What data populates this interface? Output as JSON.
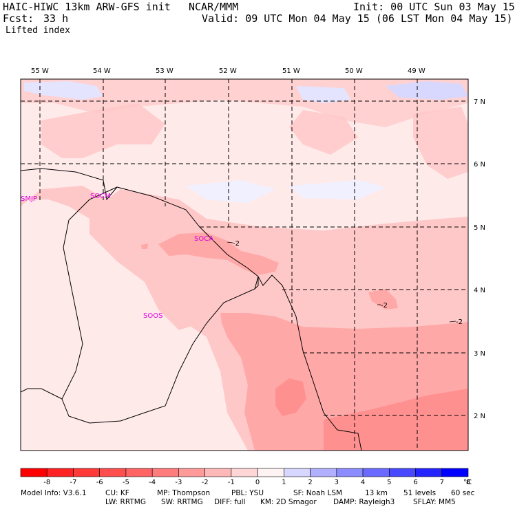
{
  "header": {
    "model": "HAIC-HIWC 13km ARW-GFS init",
    "org": "NCAR/MMM",
    "init": "Init: 00 UTC Sun 03 May 15",
    "fcst_label": "Fcst:",
    "fcst_value": "33 h",
    "valid": "Valid: 09 UTC Mon 04 May 15 (06 LST Mon 04 May 15)",
    "field": "Lifted index"
  },
  "map": {
    "lon_labels": [
      "55 W",
      "54 W",
      "53 W",
      "52 W",
      "51 W",
      "50 W",
      "49 W"
    ],
    "lat_labels": [
      "7 N",
      "6 N",
      "5 N",
      "4 N",
      "3 N",
      "2 N"
    ],
    "stations": [
      "SMJP",
      "SOCM",
      "SOCA",
      "SOOS"
    ],
    "contour_labels": [
      "-2",
      "-2",
      "-2"
    ]
  },
  "colorbar": {
    "ticks": [
      "-8",
      "-7",
      "-6",
      "-5",
      "-4",
      "-3",
      "-2",
      "-1",
      "0",
      "1",
      "2",
      "3",
      "4",
      "5",
      "6",
      "7",
      "8"
    ],
    "unit": "°C",
    "colors": [
      "#ff0000",
      "#ff2222",
      "#ff3838",
      "#ff4e4e",
      "#ff6464",
      "#ff7c7c",
      "#ff9a9a",
      "#ffb8b8",
      "#ffd6d6",
      "#fff2f2",
      "#d6d6ff",
      "#b0b0ff",
      "#8c8cff",
      "#6a6aff",
      "#4848ff",
      "#2424ff",
      "#0000ff"
    ]
  },
  "footer": {
    "line1": [
      "Model Info: V3.6.1",
      "CU: KF",
      "MP: Thompson",
      "PBL: YSU",
      "SF: Noah LSM",
      "13 km",
      "51 levels",
      "60 sec"
    ],
    "line2": [
      "LW: RRTMG",
      "SW: RRTMG",
      "DIFF: full",
      "KM: 2D Smagor",
      "DAMP: Rayleigh3",
      "SFLAY: MM5"
    ]
  }
}
